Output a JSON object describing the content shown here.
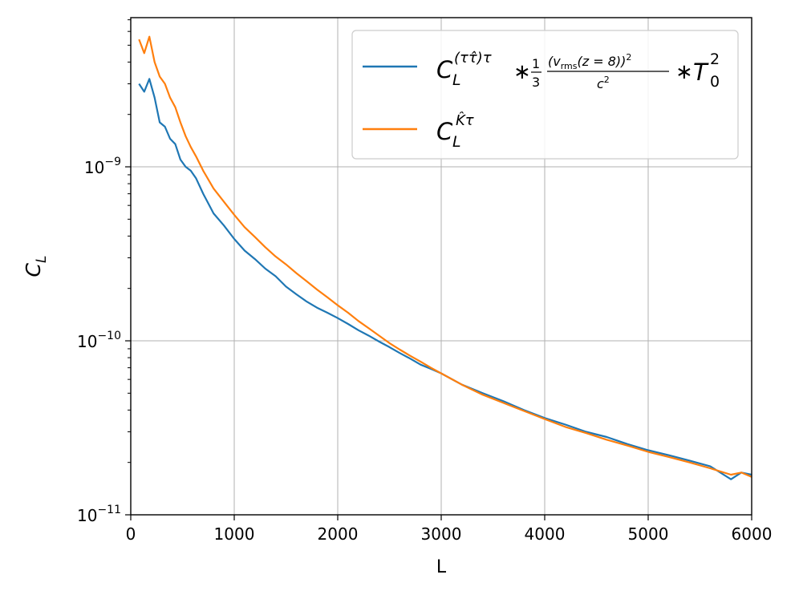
{
  "chart_data": {
    "type": "line",
    "title": "",
    "xlabel": "L",
    "ylabel": "C_L",
    "xlim": [
      0,
      6000
    ],
    "ylim": [
      1e-11,
      7.2e-09
    ],
    "yscale": "log",
    "grid": true,
    "legend_location": "top-right",
    "x_ticks": [
      0,
      1000,
      2000,
      3000,
      4000,
      5000,
      6000
    ],
    "x_tick_labels": [
      "0",
      "1000",
      "2000",
      "3000",
      "4000",
      "5000",
      "6000"
    ],
    "y_ticks": [
      1e-11,
      1e-10,
      1e-09
    ],
    "y_tick_labels": [
      {
        "base": "10",
        "exp": "−11"
      },
      {
        "base": "10",
        "exp": "−10"
      },
      {
        "base": "10",
        "exp": "−9"
      }
    ],
    "x": [
      80,
      130,
      180,
      230,
      280,
      330,
      380,
      430,
      480,
      530,
      580,
      630,
      700,
      800,
      900,
      1000,
      1100,
      1200,
      1300,
      1400,
      1500,
      1600,
      1700,
      1800,
      1900,
      2000,
      2100,
      2200,
      2300,
      2400,
      2500,
      2600,
      2700,
      2800,
      2900,
      3000,
      3200,
      3400,
      3600,
      3800,
      4000,
      4200,
      4400,
      4600,
      4800,
      5000,
      5200,
      5400,
      5600,
      5800,
      5900,
      6000
    ],
    "series": [
      {
        "name": "C_L^((ττ̂)τ) * (1/3)(v_rms(z = 8))^2/c^2 * T_0^2",
        "color": "#1f77b4",
        "values": [
          3e-09,
          2.7e-09,
          3.2e-09,
          2.5e-09,
          1.8e-09,
          1.7e-09,
          1.45e-09,
          1.35e-09,
          1.1e-09,
          1e-09,
          9.5e-10,
          8.6e-10,
          7e-10,
          5.4e-10,
          4.6e-10,
          3.85e-10,
          3.3e-10,
          2.95e-10,
          2.6e-10,
          2.35e-10,
          2.05e-10,
          1.85e-10,
          1.68e-10,
          1.55e-10,
          1.45e-10,
          1.35e-10,
          1.25e-10,
          1.15e-10,
          1.07e-10,
          9.9e-11,
          9.2e-11,
          8.5e-11,
          7.9e-11,
          7.3e-11,
          6.9e-11,
          6.5e-11,
          5.6e-11,
          5e-11,
          4.5e-11,
          4e-11,
          3.6e-11,
          3.3e-11,
          3e-11,
          2.8e-11,
          2.55e-11,
          2.35e-11,
          2.2e-11,
          2.05e-11,
          1.9e-11,
          1.6e-11,
          1.75e-11,
          1.7e-11
        ]
      },
      {
        "name": "C_L^(K̂τ)",
        "color": "#ff7f0e",
        "values": [
          5.4e-09,
          4.5e-09,
          5.6e-09,
          4e-09,
          3.3e-09,
          3e-09,
          2.5e-09,
          2.2e-09,
          1.8e-09,
          1.5e-09,
          1.3e-09,
          1.15e-09,
          9.5e-10,
          7.5e-10,
          6.3e-10,
          5.3e-10,
          4.5e-10,
          3.95e-10,
          3.45e-10,
          3.05e-10,
          2.75e-10,
          2.45e-10,
          2.2e-10,
          1.97e-10,
          1.78e-10,
          1.6e-10,
          1.45e-10,
          1.3e-10,
          1.18e-10,
          1.07e-10,
          9.7e-11,
          8.9e-11,
          8.2e-11,
          7.6e-11,
          7e-11,
          6.5e-11,
          5.6e-11,
          4.9e-11,
          4.4e-11,
          3.95e-11,
          3.55e-11,
          3.2e-11,
          2.95e-11,
          2.7e-11,
          2.5e-11,
          2.3e-11,
          2.15e-11,
          2e-11,
          1.85e-11,
          1.7e-11,
          1.75e-11,
          1.65e-11
        ]
      }
    ]
  }
}
